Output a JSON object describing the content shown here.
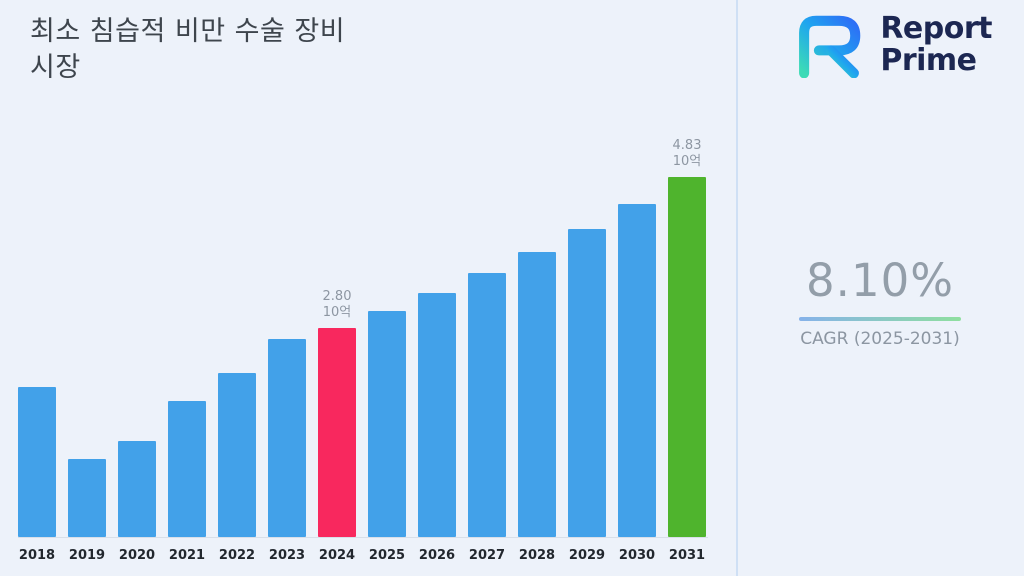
{
  "title": {
    "line1": "최소 침습적 비만 수술 장비",
    "line2": "시장"
  },
  "logo": {
    "name": "Report Prime",
    "line1": "Report",
    "line2": "Prime",
    "icon": "report-prime-r-mark",
    "navy": "#1c2752",
    "gradient": [
      "#3ddbb6",
      "#1fa6ef",
      "#2e6cf6"
    ]
  },
  "stat": {
    "value": "8.10%",
    "label": "CAGR (2025-2031)",
    "underline": {
      "from": "#86b2ea",
      "to": "#8fdf9f"
    }
  },
  "chart_data": {
    "type": "bar",
    "title": "최소 침습적 비만 수술 장비 시장",
    "categories": [
      "2018",
      "2019",
      "2020",
      "2021",
      "2022",
      "2023",
      "2024",
      "2025",
      "2026",
      "2027",
      "2028",
      "2029",
      "2030",
      "2031"
    ],
    "values": [
      2.01,
      1.05,
      1.29,
      1.82,
      2.2,
      2.66,
      2.8,
      3.03,
      3.27,
      3.54,
      3.82,
      4.13,
      4.47,
      4.83
    ],
    "unit": "10억",
    "ylim": [
      0,
      5
    ],
    "grid": false,
    "legend": "none",
    "bar_color": "#42a1e9",
    "highlights": {
      "2024": "#f8285e",
      "2031": "#4fb42d"
    },
    "value_labels": [
      {
        "category": "2024",
        "lines": [
          "2.80",
          "10억"
        ]
      },
      {
        "category": "2031",
        "lines": [
          "4.83",
          "10억"
        ]
      }
    ]
  }
}
